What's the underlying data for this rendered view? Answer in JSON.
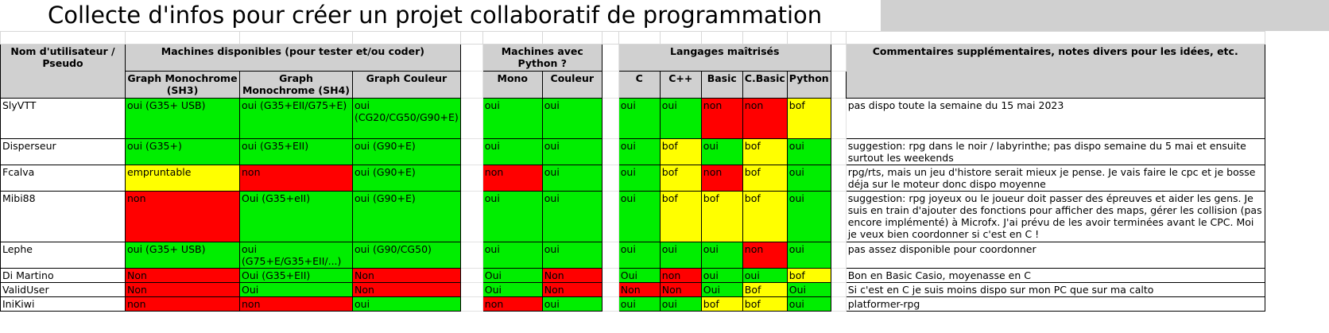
{
  "title": "Collecte d'infos pour créer un projet collaboratif de programmation",
  "colors": {
    "green": "#00ee00",
    "yellow": "#ffff00",
    "red": "#ff0000",
    "header": "#d0d0d0"
  },
  "headers": {
    "user": "Nom d'utilisateur / Pseudo",
    "machines": "Machines disponibles (pour tester et/ou coder)",
    "python_machines": "Machines avec Python ?",
    "languages": "Langages maîtrisés",
    "comments": "Commentaires supplémentaires, notes divers pour les idées, etc."
  },
  "subheaders": {
    "sh3": "Graph Monochrome (SH3)",
    "sh4": "Graph Monochrome (SH4)",
    "couleur": "Graph Couleur",
    "py_mono": "Mono",
    "py_couleur": "Couleur",
    "c": "C",
    "cpp": "C++",
    "basic": "Basic",
    "cbasic": "C.Basic",
    "python": "Python"
  },
  "rows": [
    {
      "user": "SlyVTT",
      "sh3": "oui (G35+ USB)",
      "sh4": "oui (G35+EII/G75+E)",
      "couleur": "oui (CG20/CG50/G90+E)",
      "py_mono": "oui",
      "py_couleur": "oui",
      "c": "oui",
      "cpp": "oui",
      "basic": "non",
      "cbasic": "non",
      "python": "bof",
      "comment": "pas dispo toute la semaine du 15 mai 2023"
    },
    {
      "user": "Disperseur",
      "sh3": "oui (G35+)",
      "sh4": "oui (G35+EII)",
      "couleur": "oui (G90+E)",
      "py_mono": "oui",
      "py_couleur": "oui",
      "c": "oui",
      "cpp": "bof",
      "basic": "oui",
      "cbasic": "bof",
      "python": "oui",
      "comment": "suggestion: rpg dans le noir / labyrinthe; pas dispo semaine du 5 mai et ensuite surtout les weekends"
    },
    {
      "user": "Fcalva",
      "sh3": "empruntable",
      "sh4": "non",
      "couleur": "oui (G90+E)",
      "py_mono": "non",
      "py_couleur": "oui",
      "c": "oui",
      "cpp": "bof",
      "basic": "non",
      "cbasic": "bof",
      "python": "oui",
      "comment": "rpg/rts, mais un jeu d'histore serait mieux je pense. Je vais faire le cpc et je bosse déja sur le moteur donc dispo moyenne"
    },
    {
      "user": "Mibi88",
      "sh3": "non",
      "sh4": "Oui (G35+eII)",
      "couleur": "oui (G90+E)",
      "py_mono": "oui",
      "py_couleur": "oui",
      "c": "oui",
      "cpp": "bof",
      "basic": "bof",
      "cbasic": "bof",
      "python": "oui",
      "comment": "suggestion: rpg joyeux ou le joueur doit passer des épreuves et aider les gens. Je suis en train d'ajouter des fonctions pour afficher des maps, gérer les collision (pas encore implémenté) à Microfx. J'ai prévu de les avoir terminées avant le CPC. Moi je veux bien coordonner si c'est en C !"
    },
    {
      "user": "Lephe",
      "sh3": "oui (G35+ USB)",
      "sh4": "oui (G75+E/G35+EII/...)",
      "couleur": "oui (G90/CG50)",
      "py_mono": "oui",
      "py_couleur": "oui",
      "c": "oui",
      "cpp": "oui",
      "basic": "oui",
      "cbasic": "non",
      "python": "oui",
      "comment": "pas assez disponible pour coordonner"
    },
    {
      "user": "Di Martino",
      "sh3": "Non",
      "sh4": "Oui (G35+EII)",
      "couleur": "Non",
      "py_mono": "Oui",
      "py_couleur": "Non",
      "c": "Oui",
      "cpp": "non",
      "basic": "oui",
      "cbasic": "oui",
      "python": "bof",
      "comment": "Bon en Basic Casio, moyenasse en C"
    },
    {
      "user": "ValidUser",
      "sh3": "Non",
      "sh4": "Oui",
      "couleur": "Non",
      "py_mono": "Oui",
      "py_couleur": "Non",
      "c": "Non",
      "cpp": "Non",
      "basic": "Oui",
      "cbasic": "Bof",
      "python": "Oui",
      "comment": "Si c'est en C je suis moins dispo sur mon PC que sur ma calto"
    },
    {
      "user": "IniKiwi",
      "sh3": "non",
      "sh4": "non",
      "couleur": "oui",
      "py_mono": "non",
      "py_couleur": "oui",
      "c": "oui",
      "cpp": "oui",
      "basic": "bof",
      "cbasic": "bof",
      "python": "oui",
      "comment": "platformer-rpg"
    }
  ]
}
